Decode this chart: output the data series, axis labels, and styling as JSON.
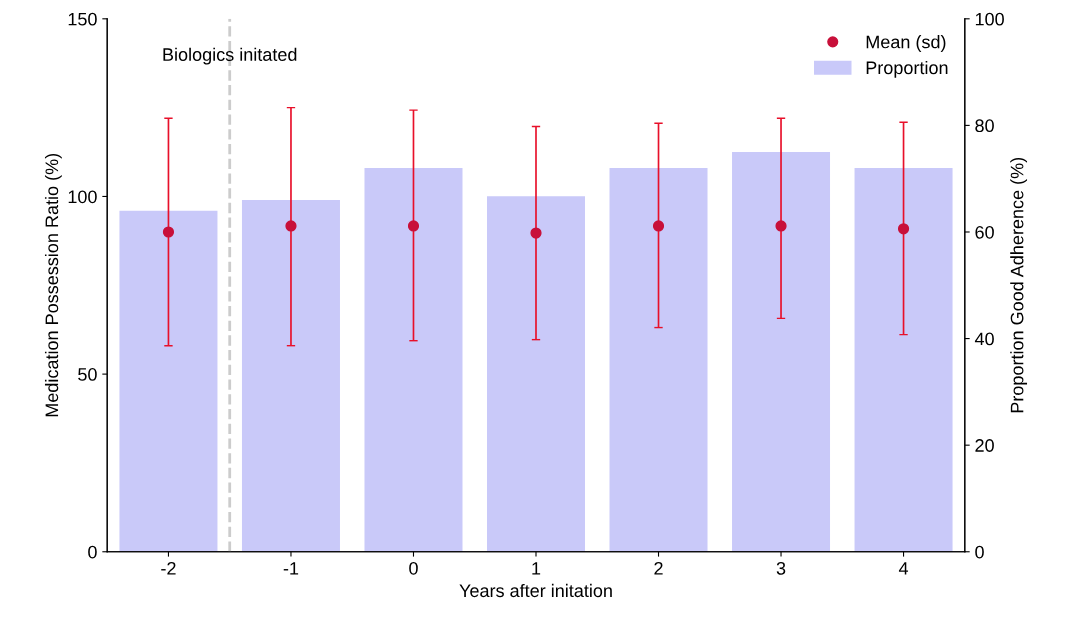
{
  "chart_data": {
    "type": "bar",
    "xlabel": "Years after initation",
    "ylabel": "Medication Possession Ratio (%)",
    "y2label": "Proportion Good Adherence (%)",
    "categories": [
      "-2",
      "-1",
      "0",
      "1",
      "2",
      "3",
      "4"
    ],
    "series": [
      {
        "name": "Mean (sd)",
        "type": "scatter",
        "color": "#c8103a",
        "values": [
          90,
          91.7,
          91.7,
          89.7,
          91.7,
          91.7,
          90.9
        ],
        "errors": [
          [
            58,
            122
          ],
          [
            58,
            125
          ],
          [
            59.4,
            124.3
          ],
          [
            59.7,
            119.7
          ],
          [
            63.1,
            120.6
          ],
          [
            65.7,
            122
          ],
          [
            61.1,
            120.9
          ]
        ]
      },
      {
        "name": "Proportion",
        "axis": "y2",
        "color": "#c9c9f9",
        "values": [
          64,
          66,
          72,
          66.7,
          72,
          75,
          72
        ]
      }
    ],
    "ylim": [
      0,
      150
    ],
    "yticks": [
      0,
      50,
      100,
      150
    ],
    "y2lim": [
      0,
      100
    ],
    "y2ticks": [
      0,
      20,
      40,
      60,
      80,
      100
    ],
    "annotations": [
      "Biologics initated"
    ],
    "legend": "top right",
    "grid": false,
    "marker": "circle"
  }
}
